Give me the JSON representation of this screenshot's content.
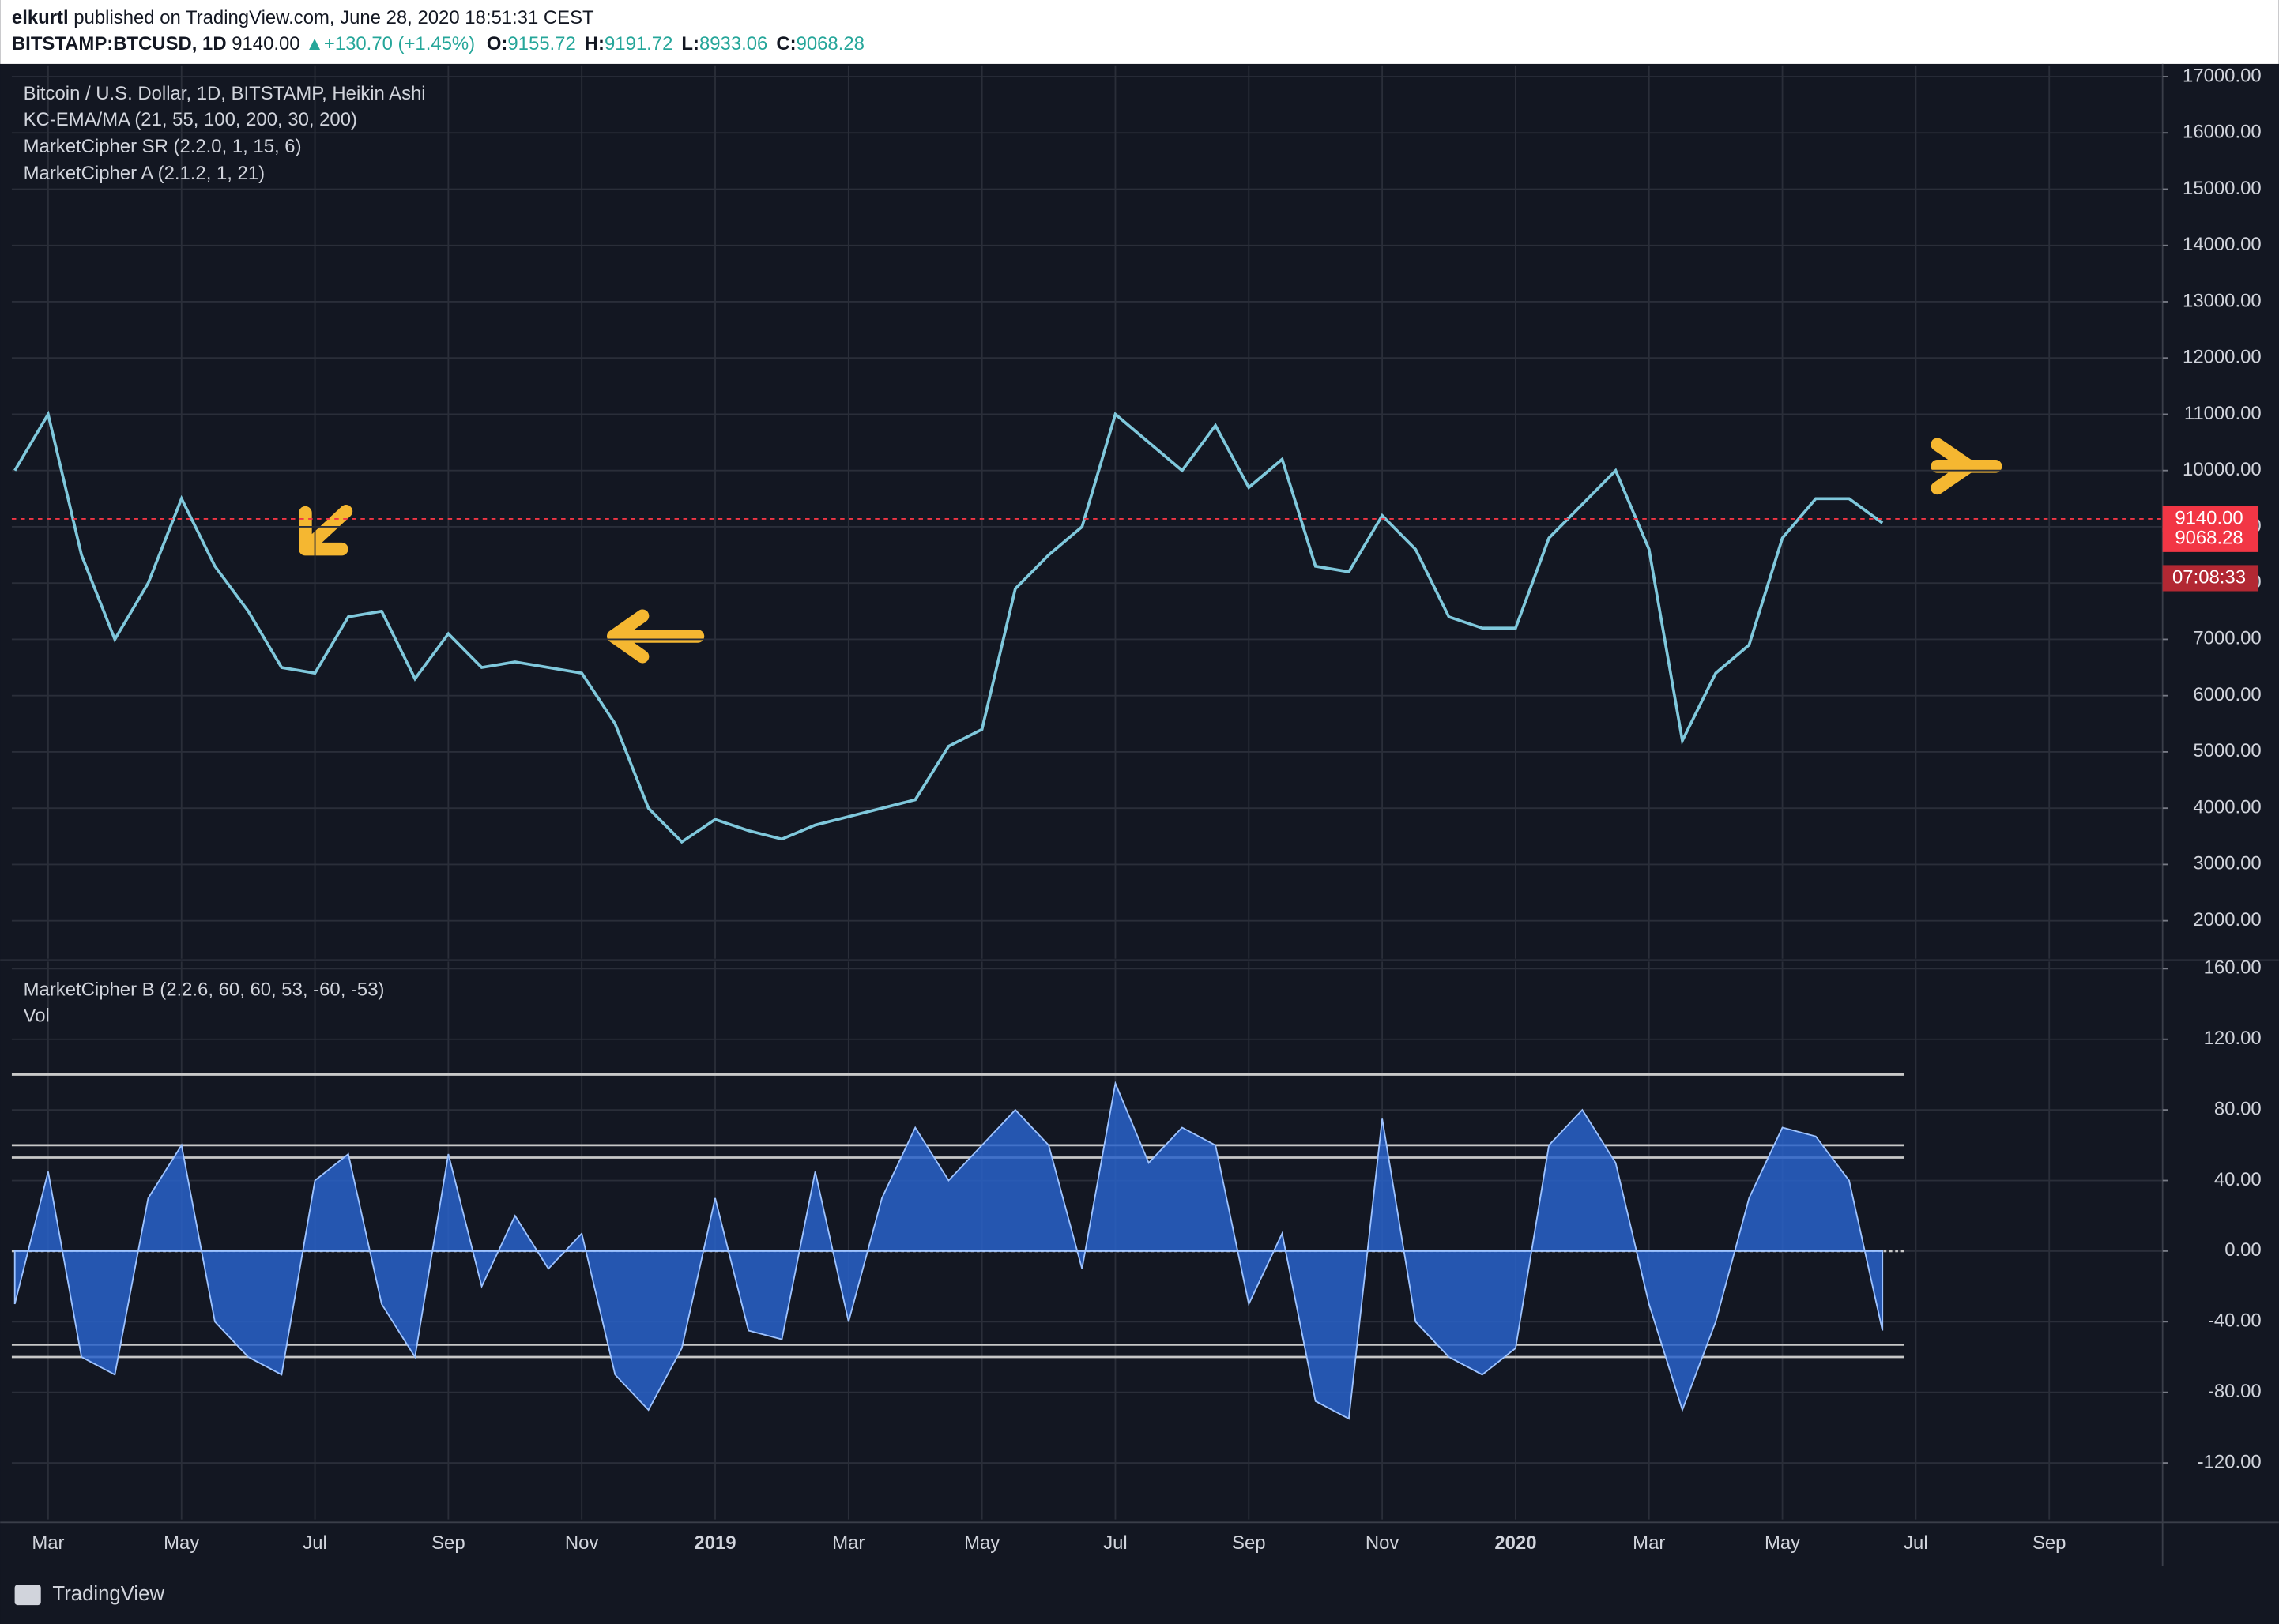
{
  "header": {
    "author": "elkurtl",
    "published": "published on TradingView.com, June 28, 2020 18:51:31 CEST",
    "symbol": "BITSTAMP:BTCUSD, 1D",
    "last": "9140.00",
    "change": "+130.70 (+1.45%)",
    "ohlc": [
      {
        "key": "O:",
        "val": "9155.72"
      },
      {
        "key": "H:",
        "val": "9191.72"
      },
      {
        "key": "L:",
        "val": "8933.06"
      },
      {
        "key": "C:",
        "val": "9068.28"
      }
    ]
  },
  "chart_data": [
    {
      "type": "line",
      "title": "Bitcoin / U.S. Dollar, 1D, BITSTAMP, Heikin Ashi",
      "indicators": [
        "KC-EMA/MA (21, 55, 100, 200, 30, 200)",
        "MarketCipher SR (2.2.0, 1, 15, 6)",
        "MarketCipher A (2.1.2, 1, 21)"
      ],
      "color": "#7fc8dc",
      "categories": [
        null,
        "Mar",
        null,
        null,
        null,
        "May",
        null,
        null,
        null,
        "Jul",
        null,
        null,
        null,
        "Sep",
        null,
        null,
        null,
        "Nov",
        null,
        null,
        null,
        "2019",
        null,
        null,
        null,
        "Mar",
        null,
        null,
        null,
        "May",
        null,
        null,
        null,
        "Jul",
        null,
        null,
        null,
        "Sep",
        null,
        null,
        null,
        "Nov",
        null,
        null,
        null,
        "2020",
        null,
        null,
        null,
        "Mar",
        null,
        null,
        null,
        "May",
        null,
        null,
        null,
        "Jul",
        null,
        null,
        null,
        "Sep"
      ],
      "values": [
        10000,
        11000,
        8500,
        7000,
        8000,
        9500,
        8300,
        7500,
        6500,
        6400,
        7400,
        7500,
        6300,
        7100,
        6500,
        6600,
        6500,
        6400,
        5500,
        4000,
        3400,
        3800,
        3600,
        3450,
        3700,
        3850,
        4000,
        4150,
        5100,
        5400,
        7900,
        8500,
        9000,
        11000,
        10500,
        10000,
        10800,
        9700,
        10200,
        8300,
        8200,
        9200,
        8600,
        7400,
        7200,
        7200,
        8800,
        9400,
        10000,
        8600,
        5200,
        6400,
        6900,
        8800,
        9500,
        9500,
        9068.28,
        null,
        null,
        null,
        null,
        null
      ],
      "ylim": [
        1325,
        17200
      ],
      "yticks": [
        {
          "value": 2000,
          "label": "2000.00"
        },
        {
          "value": 3000,
          "label": "3000.00"
        },
        {
          "value": 4000,
          "label": "4000.00"
        },
        {
          "value": 5000,
          "label": "5000.00"
        },
        {
          "value": 6000,
          "label": "6000.00"
        },
        {
          "value": 7000,
          "label": "7000.00"
        },
        {
          "value": 8000,
          "label": "8000.00"
        },
        {
          "value": 9000,
          "label": "9000.00"
        },
        {
          "value": 10000,
          "label": "10000.00"
        },
        {
          "value": 11000,
          "label": "11000.00"
        },
        {
          "value": 12000,
          "label": "12000.00"
        },
        {
          "value": 13000,
          "label": "13000.00"
        },
        {
          "value": 14000,
          "label": "14000.00"
        },
        {
          "value": 15000,
          "label": "15000.00"
        },
        {
          "value": 16000,
          "label": "16000.00"
        },
        {
          "value": 17000,
          "label": "17000.00"
        }
      ],
      "price_labels": [
        {
          "value": 9140,
          "label": "9140.00",
          "color": "#f23645"
        },
        {
          "value": 9068.28,
          "label": "9068.28",
          "color": "#f23645"
        }
      ],
      "countdown": "07:08:33",
      "grid": true
    },
    {
      "type": "area",
      "title": "MarketCipher B (2.2.6, 60, 60, 53, -60, -53)",
      "indicators": [
        "Vol"
      ],
      "color": "#2962c9",
      "values": [
        -30,
        45,
        -60,
        -70,
        30,
        60,
        -40,
        -60,
        -70,
        40,
        55,
        -30,
        -60,
        55,
        -20,
        20,
        -10,
        10,
        -70,
        -90,
        -55,
        30,
        -45,
        -50,
        45,
        -40,
        30,
        70,
        40,
        60,
        80,
        60,
        -10,
        95,
        50,
        70,
        60,
        -30,
        10,
        -85,
        -95,
        75,
        -40,
        -60,
        -70,
        -55,
        60,
        80,
        50,
        -30,
        -90,
        -40,
        30,
        70,
        65,
        40,
        -45,
        null,
        null,
        null,
        null,
        null
      ],
      "ylim": [
        -152,
        164
      ],
      "yticks": [
        {
          "value": -120,
          "label": "-120.00"
        },
        {
          "value": -80,
          "label": "-80.00"
        },
        {
          "value": -40,
          "label": "-40.00"
        },
        {
          "value": 0,
          "label": "0.00"
        },
        {
          "value": 40,
          "label": "40.00"
        },
        {
          "value": 80,
          "label": "80.00"
        },
        {
          "value": 120,
          "label": "120.00"
        },
        {
          "value": 160,
          "label": "160.00"
        }
      ],
      "hlines": [
        100,
        60,
        53,
        0,
        -53,
        -60
      ],
      "grid": true
    }
  ],
  "footer": {
    "brand": "TradingView"
  }
}
